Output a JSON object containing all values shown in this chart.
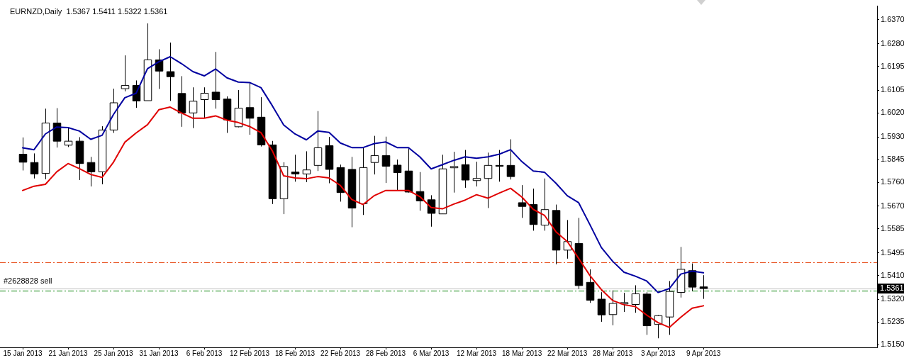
{
  "chart_data": {
    "type": "candlestick",
    "title": "EURNZD,Daily  1.5367 1.5411 1.5322 1.5361",
    "categories": [
      "15 Jan 2013",
      null,
      null,
      null,
      "21 Jan 2013",
      null,
      null,
      null,
      "25 Jan 2013",
      null,
      null,
      null,
      "31 Jan 2013",
      null,
      null,
      null,
      "6 Feb 2013",
      null,
      null,
      null,
      "12 Feb 2013",
      null,
      null,
      null,
      "18 Feb 2013",
      null,
      null,
      null,
      "22 Feb 2013",
      null,
      null,
      null,
      "28 Feb 2013",
      null,
      null,
      null,
      "6 Mar 2013",
      null,
      null,
      null,
      "12 Mar 2013",
      null,
      null,
      null,
      "18 Mar 2013",
      null,
      null,
      null,
      "22 Mar 2013",
      null,
      null,
      null,
      "28 Mar 2013",
      null,
      null,
      null,
      "3 Apr 2013",
      null,
      null,
      null,
      "9 Apr 2013"
    ],
    "ohlc": [
      [
        1.5865,
        1.5928,
        1.5804,
        1.5835
      ],
      [
        1.5834,
        1.5868,
        1.5774,
        1.5791
      ],
      [
        1.5793,
        1.6036,
        1.5771,
        1.5982
      ],
      [
        1.5982,
        1.6038,
        1.589,
        1.5914
      ],
      [
        1.5899,
        1.5963,
        1.5892,
        1.5914
      ],
      [
        1.5914,
        1.5929,
        1.5768,
        1.583
      ],
      [
        1.5834,
        1.5855,
        1.5744,
        1.5799
      ],
      [
        1.5799,
        1.597,
        1.5752,
        1.5956
      ],
      [
        1.5956,
        1.6111,
        1.5945,
        1.6058
      ],
      [
        1.6111,
        1.6236,
        1.6101,
        1.6123
      ],
      [
        1.6123,
        1.6142,
        1.6039,
        1.6065
      ],
      [
        1.6066,
        1.6356,
        1.6066,
        1.6219
      ],
      [
        1.6219,
        1.6259,
        1.611,
        1.6177
      ],
      [
        1.6175,
        1.6284,
        1.6065,
        1.6156
      ],
      [
        1.6093,
        1.6158,
        1.5968,
        1.602
      ],
      [
        1.602,
        1.6116,
        1.5963,
        1.6064
      ],
      [
        1.607,
        1.6116,
        1.6001,
        1.6094
      ],
      [
        1.6098,
        1.6249,
        1.6036,
        1.607
      ],
      [
        1.6072,
        1.6082,
        1.5945,
        1.5994
      ],
      [
        1.5968,
        1.6106,
        1.5966,
        1.6038
      ],
      [
        1.604,
        1.6134,
        1.5938,
        1.6
      ],
      [
        1.6004,
        1.6079,
        1.5894,
        1.59
      ],
      [
        1.59,
        1.5915,
        1.5678,
        1.5698
      ],
      [
        1.5698,
        1.5835,
        1.564,
        1.5819
      ],
      [
        1.5798,
        1.5863,
        1.5762,
        1.5791
      ],
      [
        1.5791,
        1.5876,
        1.576,
        1.5806
      ],
      [
        1.5823,
        1.6027,
        1.5802,
        1.5889
      ],
      [
        1.5897,
        1.593,
        1.5756,
        1.5808
      ],
      [
        1.5815,
        1.5826,
        1.5687,
        1.5721
      ],
      [
        1.5808,
        1.5855,
        1.5591,
        1.5663
      ],
      [
        1.5679,
        1.5889,
        1.5637,
        1.5815
      ],
      [
        1.5834,
        1.5934,
        1.5789,
        1.586
      ],
      [
        1.586,
        1.5931,
        1.5757,
        1.582
      ],
      [
        1.5824,
        1.5845,
        1.573,
        1.5796
      ],
      [
        1.5802,
        1.5889,
        1.5721,
        1.5723
      ],
      [
        1.5725,
        1.5798,
        1.5653,
        1.569
      ],
      [
        1.5694,
        1.5711,
        1.5593,
        1.5643
      ],
      [
        1.5641,
        1.5863,
        1.5641,
        1.581
      ],
      [
        1.5814,
        1.5874,
        1.5721,
        1.5819
      ],
      [
        1.5826,
        1.5881,
        1.5739,
        1.5768
      ],
      [
        1.5766,
        1.5837,
        1.5744,
        1.5774
      ],
      [
        1.5774,
        1.5871,
        1.5663,
        1.5823
      ],
      [
        1.5823,
        1.5881,
        1.5762,
        1.582
      ],
      [
        1.5823,
        1.5921,
        1.577,
        1.5781
      ],
      [
        1.5683,
        1.5749,
        1.5626,
        1.5669
      ],
      [
        1.5676,
        1.5736,
        1.5578,
        1.5601
      ],
      [
        1.5599,
        1.5774,
        1.5578,
        1.5657
      ],
      [
        1.5654,
        1.5676,
        1.5452,
        1.5505
      ],
      [
        1.5505,
        1.5618,
        1.5473,
        1.5537
      ],
      [
        1.553,
        1.5626,
        1.5359,
        1.5372
      ],
      [
        1.5384,
        1.5433,
        1.5307,
        1.5317
      ],
      [
        1.5321,
        1.5347,
        1.5236,
        1.5262
      ],
      [
        1.5263,
        1.5354,
        1.5223,
        1.5305
      ],
      [
        1.5303,
        1.5345,
        1.5273,
        1.5308
      ],
      [
        1.5301,
        1.5373,
        1.527,
        1.5341
      ],
      [
        1.534,
        1.5347,
        1.5187,
        1.5221
      ],
      [
        1.5226,
        1.5261,
        1.5174,
        1.5259
      ],
      [
        1.5254,
        1.5389,
        1.5187,
        1.535
      ],
      [
        1.5346,
        1.5517,
        1.5327,
        1.5433
      ],
      [
        1.5428,
        1.5455,
        1.5352,
        1.5366
      ],
      [
        1.5367,
        1.5411,
        1.5322,
        1.5361
      ]
    ],
    "series": [
      {
        "type": "line",
        "color": "#0000a0",
        "values": [
          1.5889,
          1.5882,
          1.5941,
          1.5967,
          1.5965,
          1.5952,
          1.5921,
          1.5936,
          1.6014,
          1.6077,
          1.6094,
          1.6186,
          1.6212,
          1.6231,
          1.6205,
          1.6175,
          1.6159,
          1.6185,
          1.6152,
          1.6136,
          1.6134,
          1.6115,
          1.6047,
          1.5975,
          1.5941,
          1.5919,
          1.5952,
          1.5947,
          1.5907,
          1.589,
          1.589,
          1.5905,
          1.5911,
          1.589,
          1.589,
          1.5855,
          1.581,
          1.5826,
          1.5842,
          1.5855,
          1.585,
          1.5855,
          1.5865,
          1.5882,
          1.5837,
          1.5802,
          1.5797,
          1.5756,
          1.5709,
          1.5683,
          1.56,
          1.5515,
          1.5463,
          1.5422,
          1.5407,
          1.5389,
          1.5346,
          1.5361,
          1.5415,
          1.5426,
          1.542
        ]
      },
      {
        "type": "line",
        "color": "#e00000",
        "values": [
          1.5729,
          1.5745,
          1.5752,
          1.5799,
          1.583,
          1.5811,
          1.5789,
          1.5778,
          1.5835,
          1.591,
          1.5945,
          1.5976,
          1.6032,
          1.6042,
          1.602,
          1.6,
          1.6,
          1.6009,
          1.5993,
          1.5984,
          1.5969,
          1.5946,
          1.5878,
          1.5784,
          1.5776,
          1.5773,
          1.5781,
          1.5776,
          1.5748,
          1.5695,
          1.5676,
          1.571,
          1.5729,
          1.5729,
          1.5729,
          1.5706,
          1.5665,
          1.566,
          1.5678,
          1.5693,
          1.5713,
          1.57,
          1.5719,
          1.5737,
          1.5704,
          1.5658,
          1.5635,
          1.5574,
          1.5537,
          1.5474,
          1.5409,
          1.5357,
          1.5316,
          1.53,
          1.5293,
          1.5261,
          1.5233,
          1.5215,
          1.5253,
          1.5287,
          1.5296
        ]
      }
    ],
    "ylim": [
      1.514,
      1.6421
    ],
    "yticks": [
      {
        "value": 1.637,
        "label": "1.6370"
      },
      {
        "value": 1.628,
        "label": "1.6280"
      },
      1.6195,
      1.6105,
      {
        "value": 1.602,
        "label": "1.6020"
      },
      {
        "value": 1.593,
        "label": "1.5930"
      },
      1.5845,
      {
        "value": 1.576,
        "label": "1.5760"
      },
      {
        "value": 1.567,
        "label": "1.5670"
      },
      1.5585,
      1.5495,
      {
        "value": 1.541,
        "label": "1.5410"
      },
      {
        "value": 1.532,
        "label": "1.5320"
      },
      1.5235,
      {
        "value": 1.515,
        "label": "1.5150"
      }
    ],
    "ref_lines": [
      {
        "axis": "y",
        "value": 1.546,
        "color": "#e8501c",
        "line_style": "dashed"
      },
      {
        "axis": "y",
        "value": 1.5352,
        "label": "#2628828 sell",
        "color": "#008000",
        "line_style": "dashed"
      },
      {
        "axis": "y",
        "value": 1.5361,
        "label": "1.5361",
        "color": "#c0c0c0",
        "line_style": "solid"
      }
    ]
  }
}
